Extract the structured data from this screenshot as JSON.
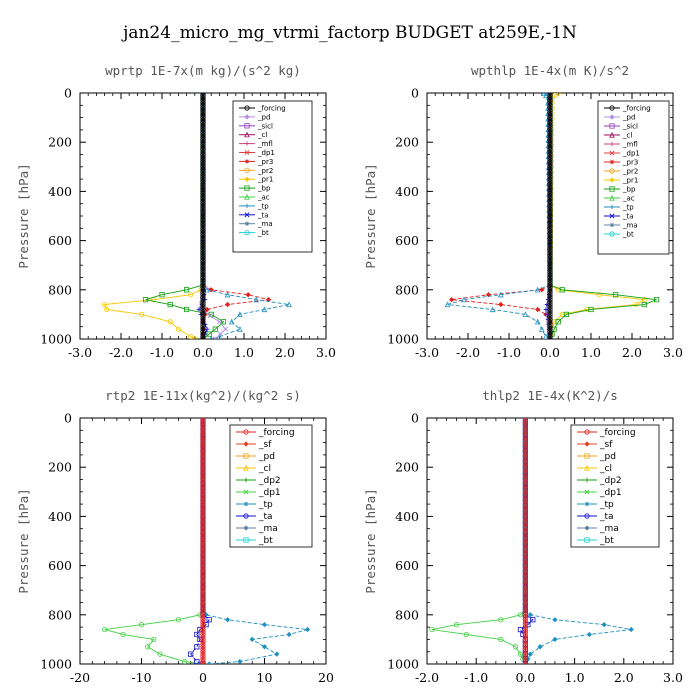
{
  "figure": {
    "title": "jan24_micro_mg_vtrmi_factorp  BUDGET at259E,-1N"
  },
  "chart_data": [
    {
      "type": "line",
      "title": "wprtp   1E-7x(m kg)/(s^2 kg)",
      "ylabel": "Pressure [hPa]",
      "xlabel": "",
      "xlim": [
        -3.0,
        3.0
      ],
      "ylim": [
        1000,
        0
      ],
      "xticks": [
        -3.0,
        -2.0,
        -1.0,
        0.0,
        1.0,
        2.0,
        3.0
      ],
      "xtick_labels": [
        "-3.0",
        "-2.0",
        "-1.0",
        "0.0",
        "1.0",
        "2.0",
        "3.0"
      ],
      "yticks": [
        0,
        200,
        400,
        600,
        800,
        1000
      ],
      "ytick_labels": [
        "0",
        "200",
        "400",
        "600",
        "800",
        "1000"
      ],
      "legend": [
        "_forcing",
        "_pd",
        "_sicl",
        "_cl",
        "_mfl",
        "_dp1",
        "_pr3",
        "_pr2",
        "_pr1",
        "_bp",
        "_ac",
        "_tp",
        "_ta",
        "_ma",
        "_bt"
      ],
      "series": [
        {
          "name": "_pr1",
          "color": "#f5c800",
          "p": [
            0,
            780,
            800,
            820,
            840,
            860,
            880,
            900,
            930,
            960,
            990,
            1000
          ],
          "x": [
            0,
            0,
            -0.05,
            -0.3,
            -1.2,
            -2.4,
            -2.35,
            -1.5,
            -0.8,
            -0.6,
            -0.3,
            -0.2
          ]
        },
        {
          "name": "_pr3",
          "color": "#e02020",
          "p": [
            0,
            780,
            800,
            820,
            840,
            860,
            880,
            900,
            930,
            960,
            1000
          ],
          "x": [
            0,
            0,
            0.2,
            1.1,
            1.6,
            0.6,
            0.1,
            0.05,
            0,
            0,
            0
          ]
        },
        {
          "name": "_bp",
          "color": "#10a010",
          "p": [
            0,
            780,
            800,
            820,
            840,
            860,
            880,
            900,
            930,
            960,
            1000
          ],
          "x": [
            0,
            0,
            -0.4,
            -1.0,
            -1.4,
            -0.8,
            -0.4,
            0.2,
            0.5,
            0.3,
            0
          ]
        },
        {
          "name": "_tp",
          "color": "#2090c0",
          "p": [
            0,
            780,
            800,
            820,
            840,
            860,
            880,
            900,
            930,
            960,
            990,
            1000
          ],
          "x": [
            0,
            0,
            0.1,
            0.6,
            1.3,
            2.1,
            1.5,
            0.9,
            0.7,
            0.9,
            0.4,
            0.2
          ]
        },
        {
          "name": "_ta",
          "color": "#1010d0",
          "p": [
            0,
            800,
            840,
            880,
            920,
            960,
            1000
          ],
          "x": [
            0,
            0,
            0.05,
            -0.1,
            0,
            0.1,
            0
          ]
        },
        {
          "name": "_pd",
          "color": "#b090e0",
          "p": [
            0,
            800,
            880,
            930,
            960,
            1000
          ],
          "x": [
            0,
            0,
            -0.05,
            0.4,
            0.55,
            0.3
          ]
        },
        {
          "name": "_forcing",
          "color": "#000000",
          "p": [
            0,
            200,
            400,
            600,
            800,
            1000
          ],
          "x": [
            0,
            0,
            0,
            0,
            0,
            0
          ]
        }
      ]
    },
    {
      "type": "line",
      "title": "wpthlp   1E-4x(m K)/s^2",
      "ylabel": "Pressure [hPa]",
      "xlabel": "",
      "xlim": [
        -3.0,
        3.0
      ],
      "ylim": [
        1000,
        0
      ],
      "xticks": [
        -3.0,
        -2.0,
        -1.0,
        0.0,
        1.0,
        2.0,
        3.0
      ],
      "xtick_labels": [
        "-3.0",
        "-2.0",
        "-1.0",
        "0.0",
        "1.0",
        "2.0",
        "3.0"
      ],
      "yticks": [
        0,
        200,
        400,
        600,
        800,
        1000
      ],
      "ytick_labels": [
        "0",
        "200",
        "400",
        "600",
        "800",
        "1000"
      ],
      "legend": [
        "_forcing",
        "_pd",
        "_sicl",
        "_cl",
        "_mfl",
        "_dp1",
        "_pr3",
        "_pr2",
        "_pr1",
        "_bp",
        "_ac",
        "_tp",
        "_ta",
        "_ma",
        "_bt"
      ],
      "series": [
        {
          "name": "_pr1",
          "color": "#f5c800",
          "p": [
            0,
            10,
            40,
            780,
            800,
            820,
            840,
            860,
            880,
            900,
            930,
            960,
            1000
          ],
          "x": [
            0.2,
            0.12,
            0.05,
            0,
            0.2,
            1.2,
            2.3,
            2.1,
            0.9,
            0.3,
            0.1,
            0.05,
            0
          ]
        },
        {
          "name": "_pr3",
          "color": "#e02020",
          "p": [
            0,
            780,
            800,
            820,
            840,
            860,
            880,
            900,
            930,
            1000
          ],
          "x": [
            0,
            0,
            -0.2,
            -1.5,
            -2.4,
            -1.2,
            -0.3,
            -0.1,
            0,
            0
          ]
        },
        {
          "name": "_bp",
          "color": "#10a010",
          "p": [
            0,
            780,
            800,
            820,
            840,
            860,
            880,
            900,
            930,
            960,
            1000
          ],
          "x": [
            0,
            0,
            0.3,
            1.6,
            2.6,
            2.3,
            1.0,
            0.4,
            0.2,
            0.1,
            0
          ]
        },
        {
          "name": "_tp",
          "color": "#2090c0",
          "p": [
            0,
            10,
            40,
            780,
            800,
            820,
            840,
            860,
            880,
            900,
            930,
            960,
            990,
            1000
          ],
          "x": [
            -0.15,
            -0.1,
            -0.05,
            0,
            -0.3,
            -1.2,
            -2.1,
            -2.5,
            -1.4,
            -0.6,
            -0.3,
            -0.2,
            -0.1,
            0
          ]
        },
        {
          "name": "_ta",
          "color": "#1010d0",
          "p": [
            0,
            800,
            840,
            880,
            920,
            1000
          ],
          "x": [
            0,
            0,
            -0.05,
            -0.1,
            -0.05,
            0
          ]
        },
        {
          "name": "_pd",
          "color": "#b090e0",
          "p": [
            0,
            800,
            900,
            1000
          ],
          "x": [
            0,
            0,
            -0.05,
            0
          ]
        },
        {
          "name": "_forcing",
          "color": "#000000",
          "p": [
            0,
            200,
            400,
            600,
            800,
            1000
          ],
          "x": [
            0,
            0,
            0,
            0,
            0,
            0
          ]
        }
      ]
    },
    {
      "type": "line",
      "title": "rtp2   1E-11x(kg^2)/(kg^2 s)",
      "ylabel": "Pressure [hPa]",
      "xlabel": "",
      "xlim": [
        -20,
        20
      ],
      "ylim": [
        1000,
        0
      ],
      "xticks": [
        -20,
        -10,
        0,
        10,
        20
      ],
      "xtick_labels": [
        "-20",
        "-10",
        "0",
        "10",
        "20"
      ],
      "yticks": [
        0,
        200,
        400,
        600,
        800,
        1000
      ],
      "ytick_labels": [
        "0",
        "200",
        "400",
        "600",
        "800",
        "1000"
      ],
      "legend": [
        "_forcing",
        "_sf",
        "_pd",
        "_cl",
        "_dp2",
        "_dp1",
        "_tp",
        "_ta",
        "_ma",
        "_bt"
      ],
      "series": [
        {
          "name": "_dp1",
          "color": "#40d040",
          "p": [
            0,
            780,
            800,
            820,
            840,
            860,
            880,
            900,
            930,
            960,
            990,
            1000
          ],
          "x": [
            0,
            0,
            -0.5,
            -4,
            -10,
            -16,
            -13,
            -8,
            -9,
            -7,
            -3,
            0
          ]
        },
        {
          "name": "_tp",
          "color": "#2090c0",
          "p": [
            0,
            780,
            800,
            820,
            840,
            860,
            880,
            900,
            930,
            960,
            990,
            1000
          ],
          "x": [
            0,
            0,
            0.5,
            4,
            10,
            17,
            14,
            8,
            10,
            12,
            6,
            1
          ]
        },
        {
          "name": "_ta",
          "color": "#1010d0",
          "p": [
            0,
            800,
            820,
            840,
            860,
            880,
            900,
            930,
            960,
            990,
            1000
          ],
          "x": [
            0,
            0,
            1,
            0.5,
            -0.5,
            -1,
            -0.5,
            -1,
            -2,
            -1,
            0
          ]
        },
        {
          "name": "_forcing",
          "color": "#e02020",
          "p": [
            0,
            200,
            400,
            600,
            800,
            1000
          ],
          "x": [
            0,
            0,
            0,
            0,
            0,
            0
          ]
        }
      ]
    },
    {
      "type": "line",
      "title": "thlp2   1E-4x(K^2)/s",
      "ylabel": "Pressure [hPa]",
      "xlabel": "",
      "xlim": [
        -2.0,
        3.0
      ],
      "ylim": [
        1000,
        0
      ],
      "xticks": [
        -2.0,
        -1.0,
        0.0,
        1.0,
        2.0,
        3.0
      ],
      "xtick_labels": [
        "-2.0",
        "-1.0",
        "0.0",
        "1.0",
        "2.0",
        "3.0"
      ],
      "yticks": [
        0,
        200,
        400,
        600,
        800,
        1000
      ],
      "ytick_labels": [
        "0",
        "200",
        "400",
        "600",
        "800",
        "1000"
      ],
      "legend": [
        "_forcing",
        "_sf",
        "_pd",
        "_cl",
        "_dp2",
        "_dp1",
        "_tp",
        "_ta",
        "_ma",
        "_bt"
      ],
      "series": [
        {
          "name": "_dp1",
          "color": "#40d040",
          "p": [
            0,
            780,
            800,
            820,
            840,
            860,
            880,
            900,
            930,
            960,
            1000
          ],
          "x": [
            0,
            0,
            -0.1,
            -0.5,
            -1.4,
            -1.9,
            -1.2,
            -0.5,
            -0.2,
            -0.1,
            0
          ]
        },
        {
          "name": "_tp",
          "color": "#2090c0",
          "p": [
            0,
            780,
            800,
            820,
            840,
            860,
            880,
            900,
            930,
            960,
            1000
          ],
          "x": [
            0,
            0,
            0.1,
            0.6,
            1.6,
            2.15,
            1.3,
            0.6,
            0.3,
            0.1,
            0
          ]
        },
        {
          "name": "_ta",
          "color": "#1010d0",
          "p": [
            0,
            800,
            820,
            840,
            860,
            880,
            900,
            1000
          ],
          "x": [
            0,
            0,
            0.15,
            0.05,
            -0.1,
            -0.05,
            0,
            0
          ]
        },
        {
          "name": "_forcing",
          "color": "#e02020",
          "p": [
            0,
            200,
            400,
            600,
            800,
            1000
          ],
          "x": [
            0,
            0,
            0,
            0,
            0,
            0
          ]
        }
      ]
    }
  ]
}
